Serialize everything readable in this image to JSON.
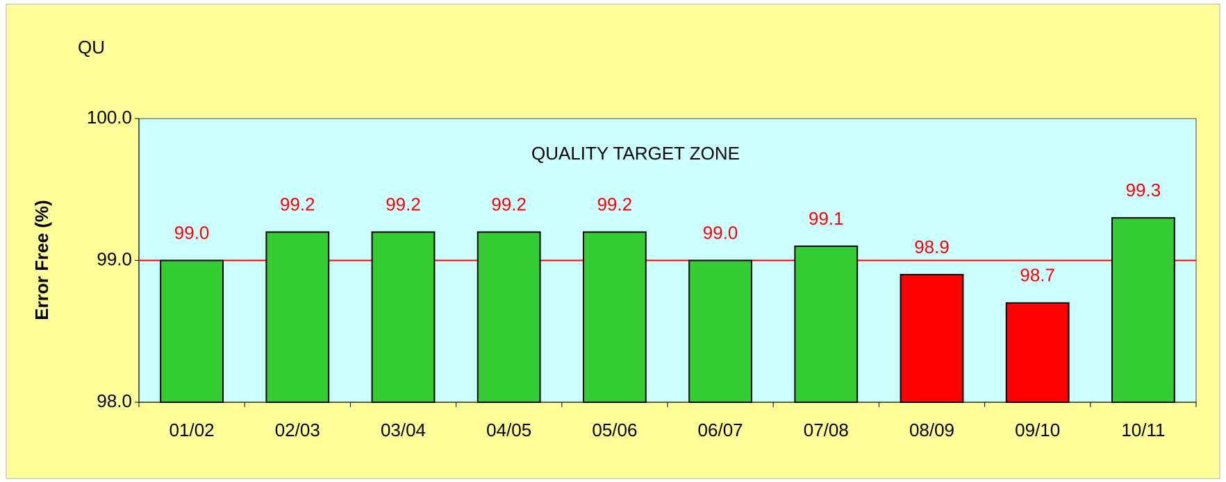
{
  "chart_data": {
    "type": "bar",
    "title": "QU",
    "y_label": "Error Free (%)",
    "annotation": "QUALITY TARGET ZONE",
    "categories": [
      "01/02",
      "02/03",
      "03/04",
      "04/05",
      "05/06",
      "06/07",
      "07/08",
      "08/09",
      "09/10",
      "10/11"
    ],
    "values": [
      99.0,
      99.2,
      99.2,
      99.2,
      99.2,
      99.0,
      99.1,
      98.9,
      98.7,
      99.3
    ],
    "value_labels": [
      "99.0",
      "99.2",
      "99.2",
      "99.2",
      "99.2",
      "99.0",
      "99.1",
      "98.9",
      "98.7",
      "99.3"
    ],
    "colors": [
      "#33cc33",
      "#33cc33",
      "#33cc33",
      "#33cc33",
      "#33cc33",
      "#33cc33",
      "#33cc33",
      "#ff0000",
      "#ff0000",
      "#33cc33"
    ],
    "target": 99,
    "target_color": "#ff0000",
    "value_label_color": "#ff0000",
    "ylim": [
      98,
      100
    ],
    "yticks": [
      {
        "value": 98,
        "label": "98.0"
      },
      {
        "value": 99,
        "label": "99.0"
      },
      {
        "value": 100,
        "label": "100.0"
      }
    ]
  }
}
